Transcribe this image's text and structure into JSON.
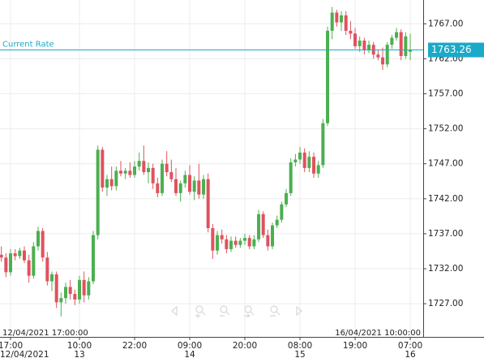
{
  "chart_data": {
    "type": "candlestick",
    "up_color": "#4caf50",
    "down_color": "#e0525e",
    "grid": true,
    "ylim": [
      1724,
      1770.4
    ],
    "yticks": [
      {
        "value": 1727,
        "label": "1727.00"
      },
      {
        "value": 1732,
        "label": "1732.00"
      },
      {
        "value": 1737,
        "label": "1737.00"
      },
      {
        "value": 1742,
        "label": "1742.00"
      },
      {
        "value": 1747,
        "label": "1747.00"
      },
      {
        "value": 1752,
        "label": "1752.00"
      },
      {
        "value": 1757,
        "label": "1757.00"
      },
      {
        "value": 1762,
        "label": "1762.00"
      },
      {
        "value": 1767,
        "label": "1767.00"
      }
    ],
    "current_rate": {
      "label": "Current Rate",
      "value": 1763.26,
      "color": "#1ba9c9"
    },
    "range_start": "12/04/2021 17:00:00",
    "range_end": "16/04/2021 10:00:00",
    "categories": [
      null,
      null,
      "17:00",
      null,
      null,
      null,
      null,
      null,
      null,
      null,
      null,
      null,
      null,
      null,
      null,
      null,
      null,
      "10:00",
      null,
      null,
      null,
      null,
      null,
      null,
      null,
      null,
      null,
      null,
      null,
      "22:00",
      null,
      null,
      null,
      null,
      null,
      null,
      null,
      null,
      null,
      null,
      null,
      "09:00",
      null,
      null,
      null,
      null,
      null,
      null,
      null,
      null,
      null,
      null,
      null,
      "20:00",
      null,
      null,
      null,
      null,
      null,
      null,
      null,
      null,
      null,
      null,
      null,
      "08:00",
      null,
      null,
      null,
      null,
      null,
      null,
      null,
      null,
      null,
      null,
      null,
      "19:00",
      null,
      null,
      null,
      null,
      null,
      null,
      null,
      null,
      null,
      null,
      null,
      "07:00"
    ],
    "dates": [
      null,
      null,
      "12/04/2021",
      null,
      null,
      null,
      null,
      null,
      null,
      null,
      null,
      null,
      null,
      null,
      null,
      null,
      null,
      "13",
      null,
      null,
      null,
      null,
      null,
      null,
      null,
      null,
      null,
      null,
      null,
      null,
      null,
      null,
      null,
      null,
      null,
      null,
      null,
      null,
      null,
      null,
      null,
      "14",
      null,
      null,
      null,
      null,
      null,
      null,
      null,
      null,
      null,
      null,
      null,
      null,
      null,
      null,
      null,
      null,
      null,
      null,
      null,
      null,
      null,
      null,
      null,
      "15",
      null,
      null,
      null,
      null,
      null,
      null,
      null,
      null,
      null,
      null,
      null,
      null,
      null,
      null,
      null,
      null,
      null,
      null,
      null,
      null,
      null,
      null,
      null,
      "16"
    ],
    "open": [
      1734.0,
      1733.6,
      1731.5,
      1734.2,
      1733.8,
      1734.6,
      1733.2,
      1731.0,
      1735.2,
      1737.4,
      1733.6,
      1730.2,
      1731.2,
      1727.2,
      1727.8,
      1729.4,
      1728.4,
      1727.6,
      1730.4,
      1728.2,
      1730.2,
      1736.8,
      1749.0,
      1743.6,
      1744.8,
      1743.8,
      1746.0,
      1745.6,
      1746.0,
      1745.4,
      1746.6,
      1747.4,
      1745.8,
      1746.4,
      1744.2,
      1742.8,
      1747.0,
      1745.8,
      1744.8,
      1742.8,
      1744.2,
      1745.4,
      1743.0,
      1744.6,
      1742.6,
      1744.8,
      1737.8,
      1734.6,
      1736.8,
      1736.2,
      1734.8,
      1736.0,
      1735.4,
      1736.0,
      1736.4,
      1735.2,
      1736.2,
      1739.8,
      1736.8,
      1735.2,
      1738.2,
      1739.0,
      1741.2,
      1742.8,
      1747.2,
      1747.6,
      1748.6,
      1746.4,
      1748.0,
      1745.6,
      1746.8,
      1752.8,
      1766.0,
      1768.6,
      1767.2,
      1768.2,
      1766.0,
      1765.6,
      1763.8,
      1764.6,
      1763.2,
      1764.0,
      1762.6,
      1762.2,
      1761.2,
      1764.0,
      1765.0,
      1765.8,
      1762.4,
      1763.0
    ],
    "high": [
      1735.2,
      1734.2,
      1734.8,
      1734.8,
      1735.0,
      1735.2,
      1734.0,
      1735.8,
      1738.0,
      1737.8,
      1734.4,
      1731.6,
      1731.6,
      1728.6,
      1730.0,
      1730.4,
      1729.0,
      1731.0,
      1731.6,
      1730.8,
      1737.4,
      1749.6,
      1749.4,
      1745.4,
      1746.6,
      1746.6,
      1747.4,
      1746.4,
      1747.2,
      1747.4,
      1748.6,
      1749.6,
      1747.2,
      1747.0,
      1745.0,
      1747.6,
      1748.8,
      1747.6,
      1746.4,
      1744.6,
      1746.0,
      1746.8,
      1745.2,
      1747.0,
      1745.4,
      1745.6,
      1738.4,
      1737.4,
      1737.6,
      1736.8,
      1736.6,
      1736.6,
      1736.4,
      1737.0,
      1736.8,
      1736.8,
      1740.4,
      1740.2,
      1737.6,
      1738.6,
      1739.6,
      1741.6,
      1743.4,
      1747.8,
      1748.4,
      1749.4,
      1749.2,
      1748.8,
      1748.6,
      1747.4,
      1753.4,
      1766.6,
      1769.4,
      1769.0,
      1768.8,
      1768.8,
      1767.4,
      1766.4,
      1765.2,
      1765.0,
      1764.6,
      1764.4,
      1763.2,
      1763.6,
      1764.4,
      1765.4,
      1766.4,
      1766.2,
      1765.8,
      1765.6
    ],
    "low": [
      1733.0,
      1730.8,
      1731.0,
      1733.2,
      1733.4,
      1732.8,
      1730.0,
      1730.6,
      1734.6,
      1733.0,
      1729.6,
      1728.8,
      1726.4,
      1725.2,
      1727.0,
      1727.6,
      1726.8,
      1727.0,
      1727.2,
      1727.6,
      1729.8,
      1736.2,
      1743.0,
      1742.4,
      1743.2,
      1743.2,
      1745.2,
      1744.8,
      1745.0,
      1745.0,
      1746.0,
      1745.4,
      1744.2,
      1743.4,
      1742.2,
      1742.4,
      1745.2,
      1744.4,
      1742.4,
      1741.6,
      1743.6,
      1742.6,
      1741.8,
      1742.0,
      1742.0,
      1737.2,
      1733.4,
      1734.0,
      1735.6,
      1734.2,
      1734.4,
      1735.0,
      1735.0,
      1735.4,
      1734.8,
      1734.8,
      1735.8,
      1736.4,
      1734.6,
      1734.8,
      1737.8,
      1738.6,
      1740.8,
      1742.4,
      1746.6,
      1747.0,
      1745.8,
      1745.8,
      1745.0,
      1745.0,
      1746.4,
      1752.4,
      1764.8,
      1766.6,
      1766.0,
      1765.4,
      1764.8,
      1763.4,
      1763.0,
      1762.6,
      1762.8,
      1762.0,
      1761.8,
      1760.4,
      1760.8,
      1763.4,
      1764.6,
      1761.8,
      1762.0,
      1761.8
    ],
    "close": [
      1733.6,
      1731.5,
      1734.2,
      1733.8,
      1734.6,
      1733.2,
      1731.0,
      1735.2,
      1737.4,
      1733.6,
      1730.2,
      1731.2,
      1727.2,
      1727.8,
      1729.4,
      1728.4,
      1727.6,
      1730.4,
      1728.2,
      1730.2,
      1736.8,
      1749.0,
      1743.6,
      1744.8,
      1743.8,
      1746.0,
      1745.6,
      1746.0,
      1745.4,
      1746.6,
      1747.4,
      1745.8,
      1746.4,
      1744.2,
      1742.8,
      1747.0,
      1745.8,
      1744.8,
      1742.8,
      1744.2,
      1745.4,
      1743.0,
      1744.6,
      1742.6,
      1744.8,
      1737.8,
      1734.6,
      1736.8,
      1736.2,
      1734.8,
      1736.0,
      1735.4,
      1736.0,
      1736.4,
      1735.2,
      1736.2,
      1739.8,
      1736.8,
      1735.2,
      1738.2,
      1739.0,
      1741.2,
      1742.8,
      1747.2,
      1747.6,
      1748.6,
      1746.4,
      1748.0,
      1745.6,
      1746.8,
      1752.8,
      1766.0,
      1768.6,
      1767.2,
      1768.2,
      1766.0,
      1765.6,
      1763.8,
      1764.6,
      1763.2,
      1764.0,
      1762.6,
      1762.2,
      1761.2,
      1764.0,
      1765.0,
      1765.8,
      1762.4,
      1765.2,
      1763.26
    ]
  }
}
